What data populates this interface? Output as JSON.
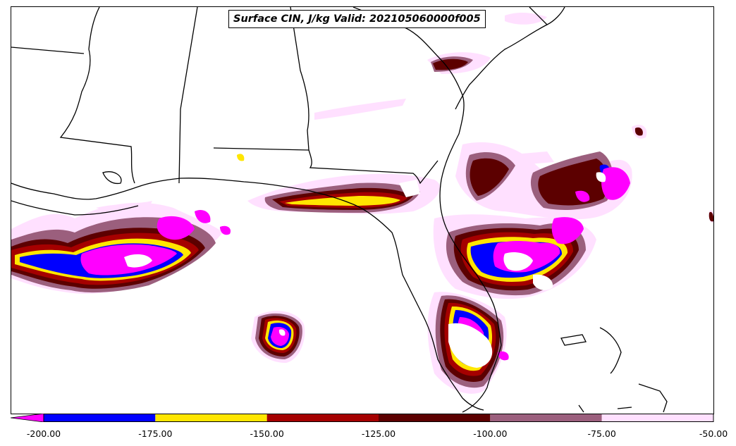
{
  "title": "Surface CIN, J/kg Valid: 202105060000f005",
  "colorbar": {
    "ticks": [
      "-200.00",
      "-175.00",
      "-150.00",
      "-125.00",
      "-100.00",
      "-75.00",
      "-50.00"
    ],
    "segments": [
      {
        "from": -200,
        "to": -175,
        "color": "#0000ff"
      },
      {
        "from": -175,
        "to": -150,
        "color": "#ffe600"
      },
      {
        "from": -150,
        "to": -125,
        "color": "#a50000"
      },
      {
        "from": -125,
        "to": -100,
        "color": "#5c0000"
      },
      {
        "from": -100,
        "to": -75,
        "color": "#9b5f7d"
      },
      {
        "from": -75,
        "to": -50,
        "color": "#ffe0ff"
      }
    ],
    "under_color": "#ff00ff"
  }
}
